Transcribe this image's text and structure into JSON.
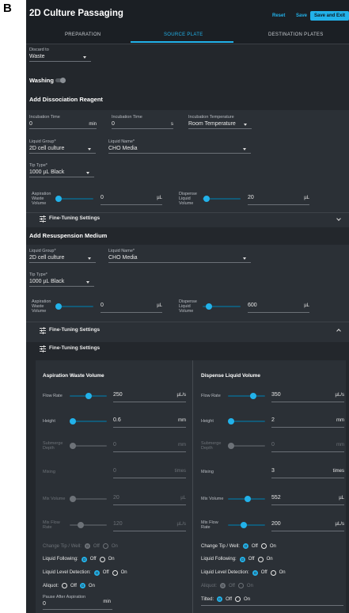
{
  "panel_label": "B",
  "header": {
    "title": "2D Culture Passaging",
    "buttons": [
      "Reset",
      "Save",
      "Save and Exit"
    ]
  },
  "tabs": {
    "items": [
      "PREPARATION",
      "SOURCE PLATE",
      "DESTINATION PLATES"
    ],
    "active": 1
  },
  "discard": {
    "label": "Discard to",
    "value": "Waste"
  },
  "washing": {
    "label": "Washing",
    "on": false
  },
  "dissociation": {
    "title": "Add Dissociation Reagent",
    "incubation_min": {
      "label": "Incubation Time",
      "value": 0,
      "unit": "min"
    },
    "incubation_s": {
      "label": "Incubation Time",
      "value": 0,
      "unit": "s"
    },
    "temperature": {
      "label": "Incubation Temperature",
      "value": "Room Temperature"
    },
    "liquid_group": {
      "label": "Liquid Group*",
      "value": "2D cell culture"
    },
    "liquid_name": {
      "label": "Liquid Name*",
      "value": "CHO Media"
    },
    "tip_type": {
      "label": "Tip Type*",
      "value": "1000 µL Black"
    },
    "aspiration": {
      "label": "Aspiration Waste Volume",
      "value": 0,
      "unit": "µL"
    },
    "dispense": {
      "label": "Dispense Liquid Volume",
      "value": 20,
      "unit": "µL"
    },
    "fine_tuning": "Fine-Tuning Settings"
  },
  "resuspension": {
    "title": "Add Resuspension Medium",
    "liquid_group": {
      "label": "Liquid Group*",
      "value": "2D cell culture"
    },
    "liquid_name": {
      "label": "Liquid Name*",
      "value": "CHO Media"
    },
    "tip_type": {
      "label": "Tip Type*",
      "value": "1000 µL Black"
    },
    "aspiration": {
      "label": "Aspiration Waste Volume",
      "value": 0,
      "unit": "µL"
    },
    "dispense": {
      "label": "Dispense Liquid Volume",
      "value": 600,
      "unit": "µL"
    },
    "fine_tuning": "Fine-Tuning Settings",
    "fine_tuning_panel": {
      "title": "Fine-Tuning Settings",
      "columns": [
        {
          "title": "Aspiration Waste Volume",
          "rows": [
            {
              "label": "Flow Rate",
              "value": 250,
              "unit": "µL/s"
            },
            {
              "label": "Height",
              "value": 0.6,
              "unit": "mm"
            },
            {
              "label": "Submerge Depth",
              "value": 0,
              "unit": "mm",
              "disabled": true
            },
            {
              "label": "Mixing",
              "value": 0,
              "unit": "times",
              "disabled": true
            },
            {
              "label": "Mix Volume",
              "value": 20,
              "unit": "µL",
              "disabled": true
            },
            {
              "label": "Mix Flow Rate",
              "value": 120,
              "unit": "µL/s",
              "disabled": true
            }
          ],
          "toggles": [
            {
              "label": "Change Tip / Well:",
              "options": [
                "Off",
                "On"
              ],
              "selected": 0,
              "disabled": true
            },
            {
              "label": "Liquid Following:",
              "options": [
                "Off",
                "On"
              ],
              "selected": 0
            },
            {
              "label": "Liquid Level Detection:",
              "options": [
                "Off",
                "On"
              ],
              "selected": 0
            },
            {
              "label": "Aliquot:",
              "options": [
                "Off",
                "On"
              ],
              "selected": 1
            }
          ],
          "pause": {
            "label": "Pause After Aspiration",
            "value": 0,
            "unit": "min"
          }
        },
        {
          "title": "Dispense Liquid Volume",
          "rows": [
            {
              "label": "Flow Rate",
              "value": 350,
              "unit": "µL/s"
            },
            {
              "label": "Height",
              "value": 2,
              "unit": "mm"
            },
            {
              "label": "Submerge Depth",
              "value": 0,
              "unit": "mm",
              "disabled": true
            },
            {
              "label": "Mixing",
              "value": 3,
              "unit": "times"
            },
            {
              "label": "Mix Volume",
              "value": 552,
              "unit": "µL"
            },
            {
              "label": "Mix Flow Rate",
              "value": 200,
              "unit": "µL/s"
            }
          ],
          "toggles": [
            {
              "label": "Change Tip / Well:",
              "options": [
                "Off",
                "On"
              ],
              "selected": 0
            },
            {
              "label": "Liquid Following:",
              "options": [
                "Off",
                "On"
              ],
              "selected": 0
            },
            {
              "label": "Liquid Level Detection:",
              "options": [
                "Off",
                "On"
              ],
              "selected": 0
            },
            {
              "label": "Aliquot:",
              "options": [
                "Off",
                "On"
              ],
              "selected": 0,
              "disabled": true
            },
            {
              "label": "Tilted:",
              "options": [
                "Off",
                "On"
              ],
              "selected": 0
            }
          ]
        }
      ]
    }
  }
}
